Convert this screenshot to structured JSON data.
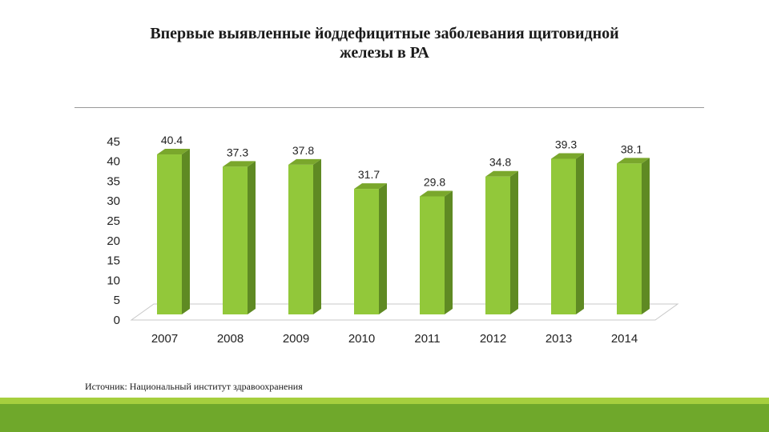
{
  "slide": {
    "title": "Впервые выявленные йоддефицитные заболевания щитовидной\nжелезы в РА",
    "source": "Источник:  Национальный институт здравоохранения",
    "colors": {
      "bar_front": "#92c83a",
      "bar_side": "#5f8a23",
      "bar_top": "#7aa72c",
      "footer_light": "#a6cf3e",
      "footer_dark": "#6fa82b"
    }
  },
  "chart_data": {
    "type": "bar",
    "categories": [
      "2007",
      "2008",
      "2009",
      "2010",
      "2011",
      "2012",
      "2013",
      "2014"
    ],
    "values": [
      40.4,
      37.3,
      37.8,
      31.7,
      29.8,
      34.8,
      39.3,
      38.1
    ],
    "data_labels": [
      "40.4",
      "37.3",
      "37.8",
      "31.7",
      "29.8",
      "34.8",
      "39.3",
      "38.1"
    ],
    "y_ticks": [
      "0",
      "5",
      "10",
      "15",
      "20",
      "25",
      "30",
      "35",
      "40",
      "45"
    ],
    "ylim": [
      0,
      45
    ],
    "title": "",
    "xlabel": "",
    "ylabel": "",
    "grid": false,
    "legend": "none",
    "style": "3d-columns"
  }
}
